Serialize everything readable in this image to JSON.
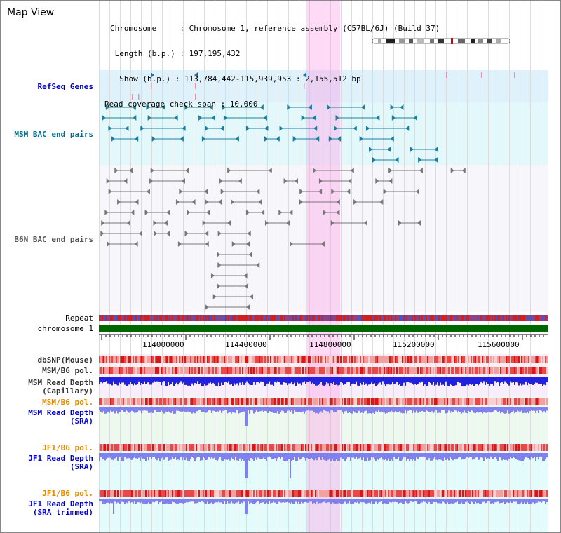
{
  "app": {
    "title": "Map View"
  },
  "info": {
    "chromosome": "Chromosome     : Chromosome 1, reference assembly (C57BL/6J) (Build 37)",
    "length": " Length (b.p.) : 197,195,432",
    "show": "  Show (b.p.) : 113,784,442-115,939,953 : 2,155,512 bp",
    "coverage": "Read coverage check span : 10,000"
  },
  "tracks": {
    "refseq": "RefSeq Genes",
    "msm_bac": "MSM BAC end pairs",
    "b6n_bac": "B6N BAC end pairs",
    "repeat": "Repeat",
    "chromosome": "chromosome 1",
    "dbsnp": "dbSNP(Mouse)",
    "msm_b6_pol_1": "MSM/B6 pol.",
    "msm_depth_cap_1": "MSM Read Depth",
    "msm_depth_cap_2": "(Capillary)",
    "msm_b6_pol_2": "MSM/B6 pol.",
    "msm_depth_sra_1": "MSM Read Depth",
    "msm_depth_sra_2": "(SRA)",
    "jf1_b6_pol_1": "JF1/B6 pol.",
    "jf1_depth_sra_1": "JF1 Read Depth",
    "jf1_depth_sra_2": "(SRA)",
    "jf1_b6_pol_2": "JF1/B6 pol.",
    "jf1_depth_trim_1": "JF1 Read Depth",
    "jf1_depth_trim_2": "(SRA trimmed)"
  },
  "axis": {
    "ticks": [
      "114000000",
      "114400000",
      "114800000",
      "115200000",
      "115600000"
    ]
  },
  "colors": {
    "refseq_bg": "#dff1fb",
    "msm_bg": "#e3f8fb",
    "b6n_bg": "#f6f6fb",
    "chromosome_bar": "#006600",
    "highlight": "#f7c6ee",
    "depth_cap": "#2222dd",
    "depth_sra": "#8080ee"
  }
}
